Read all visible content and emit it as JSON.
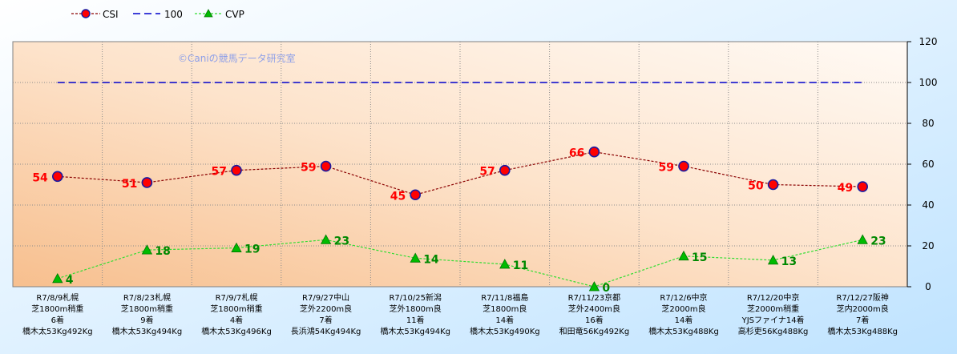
{
  "chart_data": {
    "type": "line",
    "categories": [
      [
        "R7/8/9札幌",
        "芝1800m稍重",
        "6着",
        "橋木太53Kg492Kg"
      ],
      [
        "R7/8/23札幌",
        "芝1800m稍重",
        "9着",
        "橋木太53Kg494Kg"
      ],
      [
        "R7/9/7札幌",
        "芝1800m稍重",
        "4着",
        "橋木太53Kg496Kg"
      ],
      [
        "R7/9/27中山",
        "芝外2200m良",
        "7着",
        "長浜鴻54Kg494Kg"
      ],
      [
        "R7/10/25新潟",
        "芝外1800m良",
        "11着",
        "橋木太53Kg494Kg"
      ],
      [
        "R7/11/8福島",
        "芝1800m良",
        "14着",
        "橋木太53Kg490Kg"
      ],
      [
        "R7/11/23京都",
        "芝外2400m良",
        "16着",
        "和田竜56Kg492Kg"
      ],
      [
        "R7/12/6中京",
        "芝2000m良",
        "14着",
        "橋木太53Kg488Kg"
      ],
      [
        "R7/12/20中京",
        "芝2000m稍重",
        "YJSファイナ14着",
        "高杉吏56Kg488Kg"
      ],
      [
        "R7/12/27阪神",
        "芝内2000m良",
        "7着",
        "橋木太53Kg488Kg"
      ]
    ],
    "series": [
      {
        "name": "CSI",
        "values": [
          54,
          51,
          57,
          59,
          45,
          57,
          66,
          59,
          50,
          49
        ],
        "color": "#8b0000",
        "marker_color": "#ff0000",
        "label_color": "#ff0000"
      },
      {
        "name": "100",
        "values": [
          100,
          100,
          100,
          100,
          100,
          100,
          100,
          100,
          100,
          100
        ],
        "color": "#0000cc"
      },
      {
        "name": "CVP",
        "values": [
          4,
          18,
          19,
          23,
          14,
          11,
          0,
          15,
          13,
          23
        ],
        "color": "#33dd33",
        "marker_color": "#00bb00",
        "label_color": "#008800"
      }
    ],
    "ylim": [
      0,
      120
    ],
    "yticks": [
      "0",
      "20",
      "40",
      "60",
      "80",
      "100",
      "120"
    ],
    "grid": true,
    "legend_position": "top-left",
    "watermark": "©Caniの競馬データ研究室"
  }
}
